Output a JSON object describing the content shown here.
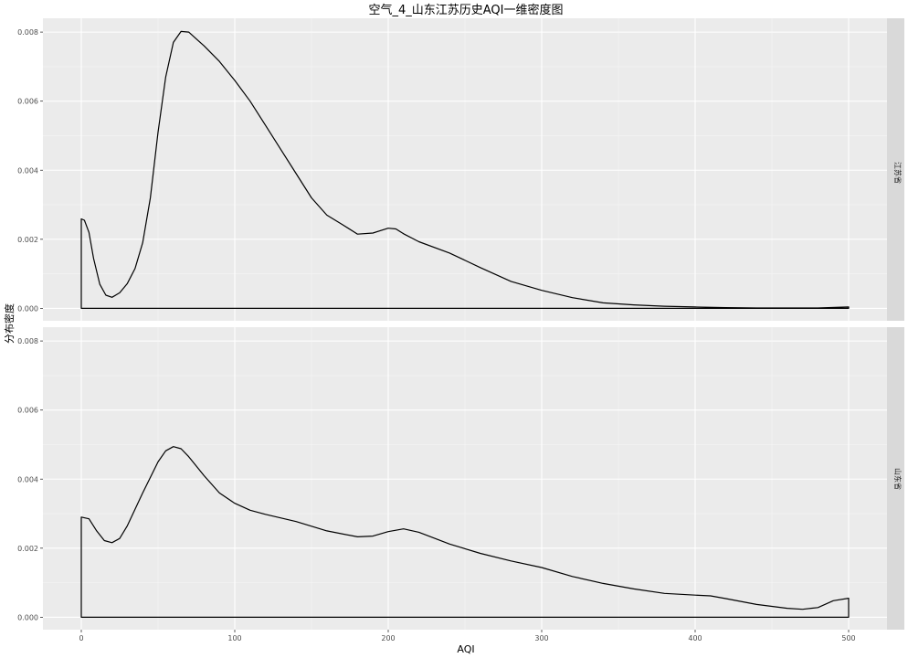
{
  "chart_data": {
    "type": "line",
    "chart_kind": "density",
    "title": "空气_4_山东江苏历史AQI一维密度图",
    "xlabel": "AQI",
    "ylabel": "分布密度",
    "xlim": [
      -25,
      525
    ],
    "ylim": [
      -0.00036,
      0.0084
    ],
    "x_ticks": [
      0,
      100,
      200,
      300,
      400,
      500
    ],
    "y_ticks": [
      0.0,
      0.002,
      0.004,
      0.006,
      0.008
    ],
    "y_tick_labels": [
      "0.000",
      "0.002",
      "0.004",
      "0.006",
      "0.008"
    ],
    "grid": true,
    "facets": [
      {
        "label": "江苏省",
        "series": [
          {
            "x": [
              0,
              2,
              5,
              8,
              12,
              16,
              20,
              25,
              30,
              35,
              40,
              45,
              50,
              55,
              60,
              65,
              70,
              75,
              80,
              90,
              100,
              110,
              120,
              130,
              140,
              150,
              160,
              170,
              180,
              190,
              200,
              205,
              210,
              220,
              240,
              260,
              280,
              300,
              320,
              340,
              360,
              380,
              400,
              420,
              440,
              460,
              480,
              500
            ],
            "y": [
              0.00259,
              0.00255,
              0.0022,
              0.00145,
              0.0007,
              0.00038,
              0.00032,
              0.00045,
              0.00072,
              0.00115,
              0.0019,
              0.0032,
              0.0051,
              0.0067,
              0.0077,
              0.00802,
              0.008,
              0.0078,
              0.0076,
              0.00715,
              0.0066,
              0.006,
              0.0053,
              0.0046,
              0.0039,
              0.0032,
              0.0027,
              0.00243,
              0.00215,
              0.00218,
              0.00232,
              0.0023,
              0.00216,
              0.00193,
              0.0016,
              0.00118,
              0.00078,
              0.00052,
              0.00031,
              0.00016,
              0.0001,
              6e-05,
              4e-05,
              2e-05,
              1e-05,
              1e-05,
              1e-05,
              4e-05
            ]
          }
        ]
      },
      {
        "label": "山东省",
        "series": [
          {
            "x": [
              0,
              5,
              10,
              15,
              20,
              25,
              30,
              40,
              50,
              55,
              60,
              65,
              70,
              80,
              90,
              100,
              110,
              120,
              140,
              160,
              180,
              190,
              200,
              210,
              220,
              240,
              260,
              280,
              300,
              320,
              340,
              360,
              380,
              400,
              410,
              420,
              440,
              460,
              470,
              480,
              490,
              500
            ],
            "y": [
              0.0029,
              0.00285,
              0.0025,
              0.00222,
              0.00216,
              0.00228,
              0.00265,
              0.0036,
              0.0045,
              0.00482,
              0.00494,
              0.00488,
              0.00465,
              0.0041,
              0.0036,
              0.0033,
              0.0031,
              0.00298,
              0.00277,
              0.0025,
              0.00233,
              0.00235,
              0.00248,
              0.00256,
              0.00246,
              0.00212,
              0.00185,
              0.00163,
              0.00144,
              0.00118,
              0.00098,
              0.00082,
              0.00069,
              0.00064,
              0.00062,
              0.00054,
              0.00037,
              0.00026,
              0.00023,
              0.00028,
              0.00048,
              0.00055
            ]
          }
        ]
      }
    ]
  }
}
